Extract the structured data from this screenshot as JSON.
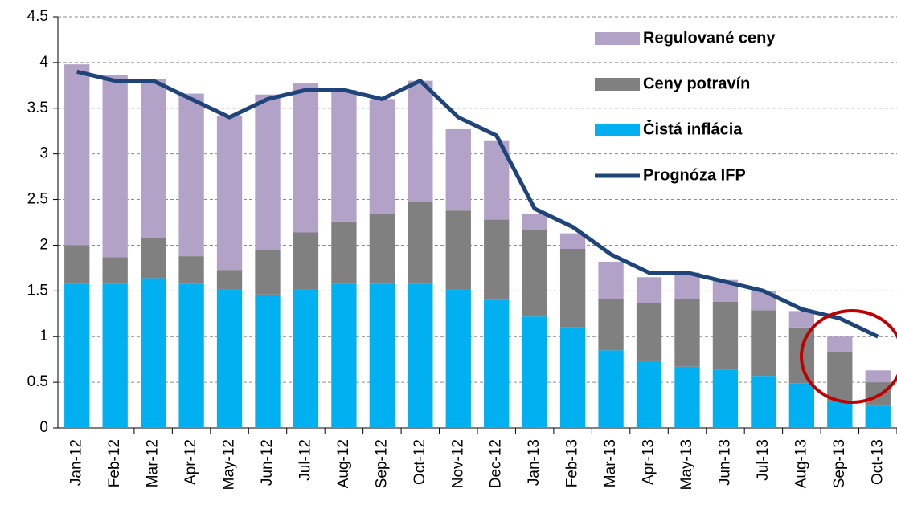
{
  "chart_data": {
    "type": "bar",
    "categories": [
      "Jan-12",
      "Feb-12",
      "Mar-12",
      "Apr-12",
      "May-12",
      "Jun-12",
      "Jul-12",
      "Aug-12",
      "Sep-12",
      "Oct-12",
      "Nov-12",
      "Dec-12",
      "Jan-13",
      "Feb-13",
      "Mar-13",
      "Apr-13",
      "May-13",
      "Jun-13",
      "Jul-13",
      "Aug-13",
      "Sep-13",
      "Oct-13"
    ],
    "series": [
      {
        "name": "Čistá inflácia",
        "color": "#00b0f0",
        "stack": true,
        "values": [
          1.58,
          1.58,
          1.64,
          1.58,
          1.52,
          1.46,
          1.52,
          1.58,
          1.58,
          1.58,
          1.52,
          1.4,
          1.22,
          1.1,
          0.85,
          0.73,
          0.67,
          0.64,
          0.57,
          0.49,
          0.3,
          0.24
        ]
      },
      {
        "name": "Ceny potravín",
        "color": "#808080",
        "stack": true,
        "values": [
          0.42,
          0.29,
          0.44,
          0.3,
          0.21,
          0.49,
          0.62,
          0.68,
          0.76,
          0.89,
          0.86,
          0.88,
          0.95,
          0.86,
          0.56,
          0.64,
          0.74,
          0.74,
          0.72,
          0.61,
          0.53,
          0.26
        ]
      },
      {
        "name": "Regulované ceny",
        "color": "#b3a2c7",
        "stack": true,
        "values": [
          1.98,
          1.99,
          1.74,
          1.78,
          1.69,
          1.7,
          1.63,
          1.44,
          1.26,
          1.33,
          0.89,
          0.86,
          0.17,
          0.17,
          0.41,
          0.28,
          0.29,
          0.24,
          0.21,
          0.18,
          0.17,
          0.13
        ]
      },
      {
        "name": "Prognóza IFP",
        "color": "#1f4479",
        "kind": "line",
        "values": [
          3.9,
          3.8,
          3.8,
          3.6,
          3.4,
          3.6,
          3.7,
          3.7,
          3.6,
          3.8,
          3.4,
          3.2,
          2.4,
          2.2,
          1.9,
          1.7,
          1.7,
          1.6,
          1.5,
          1.3,
          1.2,
          1.0
        ]
      }
    ],
    "legend_order": [
      2,
      1,
      0,
      3
    ],
    "ylim": [
      0,
      4.5
    ],
    "yticks": [
      0,
      0.5,
      1,
      1.5,
      2,
      2.5,
      3,
      3.5,
      4,
      4.5
    ],
    "grid": true,
    "legend": "upper right"
  }
}
